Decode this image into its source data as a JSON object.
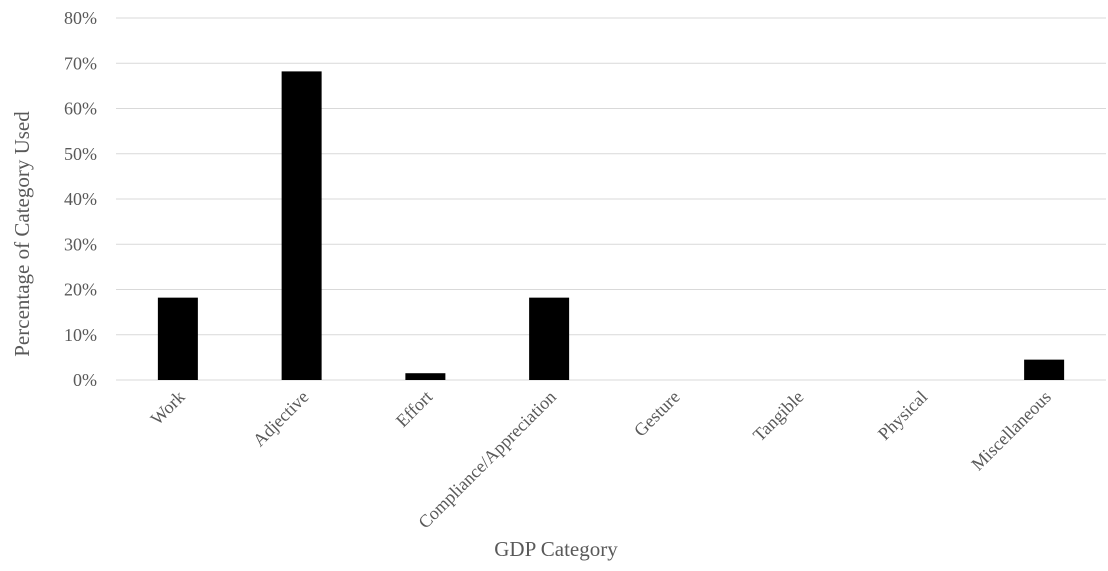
{
  "chart_data": {
    "type": "bar",
    "categories": [
      "Work",
      "Adjective",
      "Effort",
      "Compliance/Appreciation",
      "Gesture",
      "Tangible",
      "Physical",
      "Miscellaneous"
    ],
    "series": [
      {
        "values": [
          18.2,
          68.2,
          1.5,
          18.2,
          0,
          0,
          0,
          4.5
        ]
      }
    ],
    "xlabel": "GDP Category",
    "ylabel": "Percentage of Category Used",
    "ylim": [
      0,
      80
    ],
    "yticks": [
      0,
      10,
      20,
      30,
      40,
      50,
      60,
      70,
      80
    ],
    "ytick_labels": [
      "0%",
      "10%",
      "20%",
      "30%",
      "40%",
      "50%",
      "60%",
      "70%",
      "80%"
    ],
    "grid": true,
    "legend": "none",
    "colors": {
      "bar": "#000000",
      "grid": "#d9d9d9",
      "text": "#595959"
    }
  }
}
